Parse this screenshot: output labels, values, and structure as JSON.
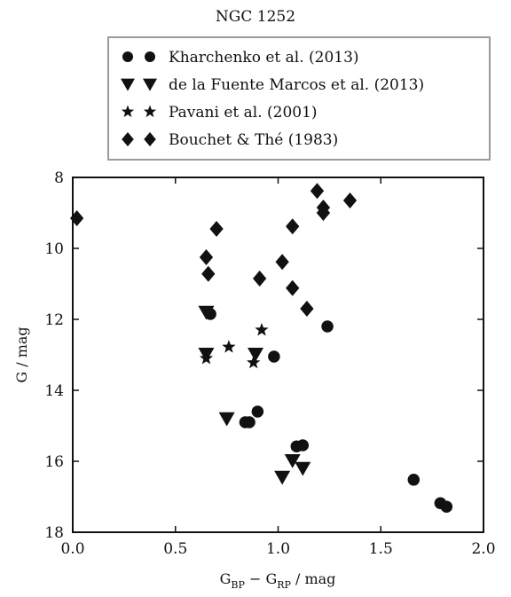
{
  "chart_data": {
    "type": "scatter",
    "title": "NGC 1252",
    "xlabel": {
      "main": "G",
      "sub1": "BP",
      "mid": " − G",
      "sub2": "RP",
      "unit": " / mag"
    },
    "ylabel": "G / mag",
    "xlim": [
      0.0,
      2.0
    ],
    "ylim": [
      18,
      8
    ],
    "y_inverted": true,
    "grid": false,
    "legend_position": "top-center-outside",
    "x_ticks": [
      "0.0",
      "0.5",
      "1.0",
      "1.5",
      "2.0"
    ],
    "y_ticks": [
      "8",
      "10",
      "12",
      "14",
      "16",
      "18"
    ],
    "series": [
      {
        "name": "Kharchenko et al. (2013)",
        "marker": "circle",
        "color": "#111111",
        "points": [
          {
            "x": 0.67,
            "y": 11.85
          },
          {
            "x": 0.98,
            "y": 13.05
          },
          {
            "x": 1.24,
            "y": 12.2
          },
          {
            "x": 0.9,
            "y": 14.6
          },
          {
            "x": 0.84,
            "y": 14.9
          },
          {
            "x": 0.86,
            "y": 14.9
          },
          {
            "x": 1.09,
            "y": 15.58
          },
          {
            "x": 1.12,
            "y": 15.55
          },
          {
            "x": 1.66,
            "y": 16.52
          },
          {
            "x": 1.79,
            "y": 17.18
          },
          {
            "x": 1.82,
            "y": 17.28
          }
        ]
      },
      {
        "name": "de la Fuente Marcos et al. (2013)",
        "marker": "triangle-down",
        "color": "#111111",
        "points": [
          {
            "x": 0.65,
            "y": 11.8
          },
          {
            "x": 0.65,
            "y": 12.98
          },
          {
            "x": 0.89,
            "y": 12.98
          },
          {
            "x": 0.75,
            "y": 14.8
          },
          {
            "x": 1.07,
            "y": 15.98
          },
          {
            "x": 1.12,
            "y": 16.2
          },
          {
            "x": 1.02,
            "y": 16.45
          }
        ]
      },
      {
        "name": "Pavani et al. (2001)",
        "marker": "star",
        "color": "#111111",
        "points": [
          {
            "x": 0.92,
            "y": 12.3
          },
          {
            "x": 0.76,
            "y": 12.78
          },
          {
            "x": 0.65,
            "y": 13.1
          },
          {
            "x": 0.88,
            "y": 13.22
          }
        ]
      },
      {
        "name": "Bouchet & Thé (1983)",
        "marker": "diamond",
        "color": "#111111",
        "points": [
          {
            "x": 0.02,
            "y": 9.15
          },
          {
            "x": 0.7,
            "y": 9.45
          },
          {
            "x": 0.65,
            "y": 10.25
          },
          {
            "x": 0.66,
            "y": 10.72
          },
          {
            "x": 0.91,
            "y": 10.85
          },
          {
            "x": 1.02,
            "y": 10.38
          },
          {
            "x": 1.07,
            "y": 9.38
          },
          {
            "x": 1.07,
            "y": 11.12
          },
          {
            "x": 1.14,
            "y": 11.7
          },
          {
            "x": 1.19,
            "y": 8.38
          },
          {
            "x": 1.22,
            "y": 8.85
          },
          {
            "x": 1.22,
            "y": 9.0
          },
          {
            "x": 1.35,
            "y": 8.65
          }
        ]
      }
    ]
  }
}
